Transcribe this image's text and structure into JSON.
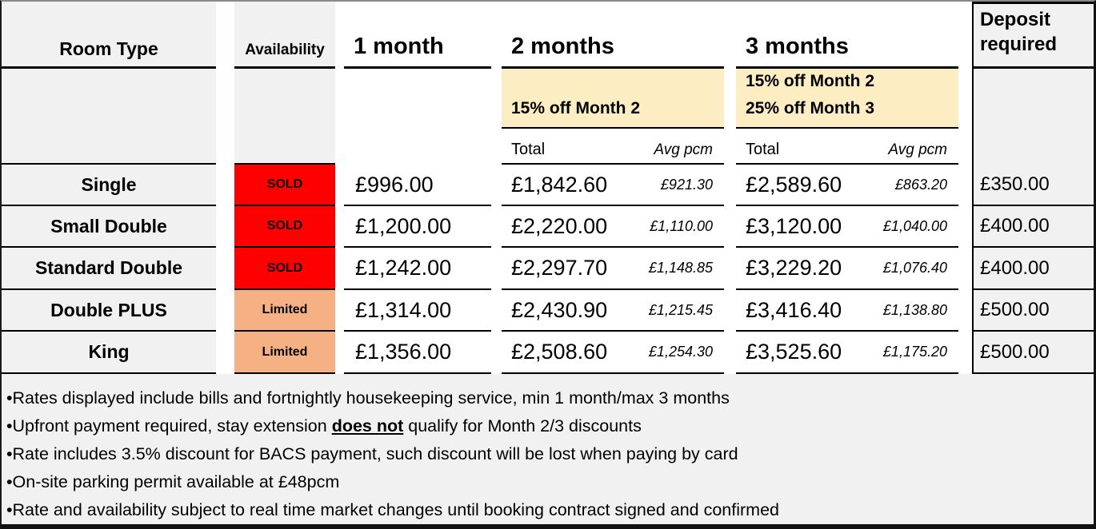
{
  "table": {
    "headers": {
      "room_type": "Room Type",
      "availability": "Availability",
      "one_month": "1 month",
      "two_months": "2 months",
      "three_months": "3 months",
      "deposit": "Deposit required"
    },
    "discounts": {
      "two_months": "15% off Month 2",
      "three_months_line1": "15% off Month 2",
      "three_months_line2": "25% off Month 3"
    },
    "subheaders": {
      "total": "Total",
      "avg": "Avg pcm"
    },
    "rows": [
      {
        "name": "Single",
        "availability": "SOLD",
        "status": "sold",
        "one_month": "£996.00",
        "two_months_total": "£1,842.60",
        "two_months_avg": "£921.30",
        "three_months_total": "£2,589.60",
        "three_months_avg": "£863.20",
        "deposit": "£350.00"
      },
      {
        "name": "Small Double",
        "availability": "SOLD",
        "status": "sold",
        "one_month": "£1,200.00",
        "two_months_total": "£2,220.00",
        "two_months_avg": "£1,110.00",
        "three_months_total": "£3,120.00",
        "three_months_avg": "£1,040.00",
        "deposit": "£400.00"
      },
      {
        "name": "Standard Double",
        "availability": "SOLD",
        "status": "sold",
        "one_month": "£1,242.00",
        "two_months_total": "£2,297.70",
        "two_months_avg": "£1,148.85",
        "three_months_total": "£3,229.20",
        "three_months_avg": "£1,076.40",
        "deposit": "£400.00"
      },
      {
        "name": "Double PLUS",
        "availability": "Limited",
        "status": "limited",
        "one_month": "£1,314.00",
        "two_months_total": "£2,430.90",
        "two_months_avg": "£1,215.45",
        "three_months_total": "£3,416.40",
        "three_months_avg": "£1,138.80",
        "deposit": "£500.00"
      },
      {
        "name": "King",
        "availability": "Limited",
        "status": "limited",
        "one_month": "£1,356.00",
        "two_months_total": "£2,508.60",
        "two_months_avg": "£1,254.30",
        "three_months_total": "£3,525.60",
        "three_months_avg": "£1,175.20",
        "deposit": "£500.00"
      }
    ]
  },
  "notes": [
    {
      "text": "•Rates displayed include bills and fortnightly housekeeping service, min 1 month/max 3 months"
    },
    {
      "prefix": "•Upfront payment required, stay extension ",
      "emphasis": "does not",
      "suffix": " qualify for Month 2/3 discounts"
    },
    {
      "text": "•Rate includes 3.5% discount for BACS payment, such discount will be lost when paying by card"
    },
    {
      "text": "•On-site parking permit available at £48pcm"
    },
    {
      "text": "•Rate and availability subject to real time market changes until booking contract signed and confirmed"
    }
  ],
  "colors": {
    "sold_bg": "#fe0000",
    "limited_bg": "#f5b183",
    "discount_highlight_bg": "#fcedc3",
    "label_column_bg": "#f1f1f1",
    "border": "#000000"
  }
}
